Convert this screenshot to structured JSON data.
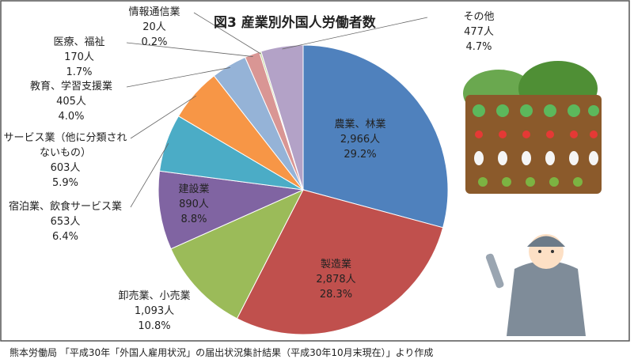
{
  "chart_data": {
    "type": "pie",
    "title": "図3  産業別外国人労働者数",
    "categories": [
      "農業、林業",
      "製造業",
      "卸売業、小売業",
      "建設業",
      "宿泊業、飲食サービス業",
      "サービス業（他に分類されないもの）",
      "教育、学習支援業",
      "医療、福祉",
      "情報通信業",
      "その他"
    ],
    "values": [
      2966,
      2878,
      1093,
      890,
      653,
      603,
      405,
      170,
      20,
      477
    ],
    "value_labels": [
      "2,966人",
      "2,878人",
      "1,093人",
      "890人",
      "653人",
      "603人",
      "405人",
      "170人",
      "20人",
      "477人"
    ],
    "percent_labels": [
      "29.2%",
      "28.3%",
      "10.8%",
      "8.8%",
      "6.4%",
      "5.9%",
      "4.0%",
      "1.7%",
      "0.2%",
      "4.7%"
    ],
    "colors": [
      "#4f81bd",
      "#c0504d",
      "#9bbb59",
      "#8064a2",
      "#4bacc6",
      "#f79646",
      "#95b3d7",
      "#d99694",
      "#c3d69b",
      "#b3a2c7"
    ],
    "source": "熊本労働局 「平成30年「外国人雇用状況」の届出状況集計結果（平成30年10月末現在）」より作成"
  }
}
